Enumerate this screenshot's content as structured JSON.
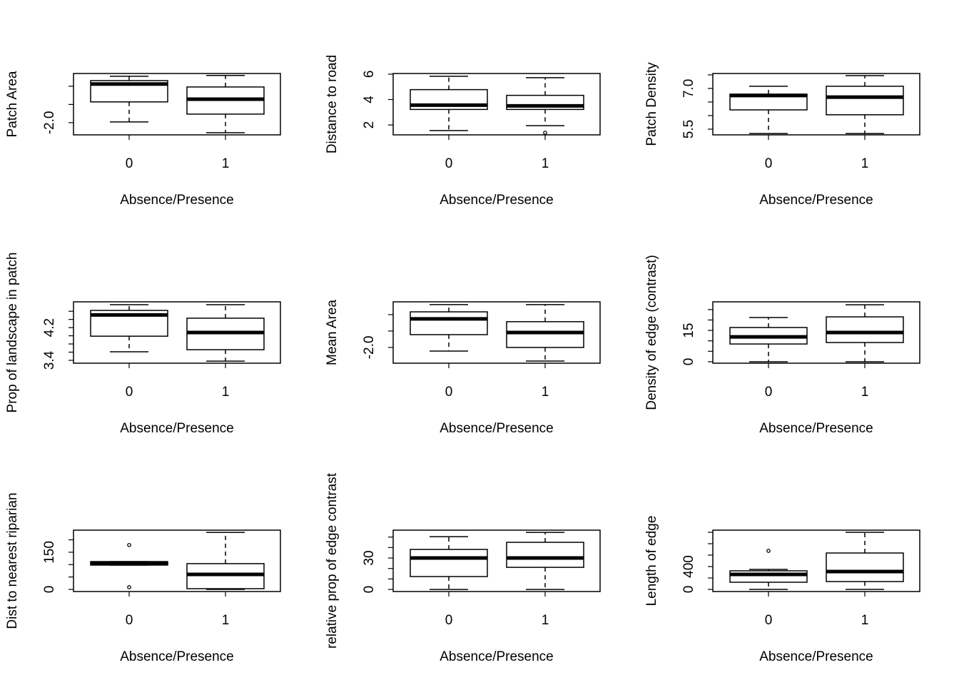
{
  "chart_data": [
    {
      "type": "box",
      "ylabel": "Patch Area",
      "xlabel": "Absence/Presence",
      "categories": [
        "0",
        "1"
      ],
      "boxes": [
        {
          "min": -1.96,
          "q1": -0.86,
          "median": 0.12,
          "q3": 0.31,
          "max": 0.55,
          "outliers": []
        },
        {
          "min": -2.55,
          "q1": -1.53,
          "median": -0.71,
          "q3": -0.04,
          "max": 0.59,
          "outliers": []
        }
      ],
      "ylim": [
        -2.67,
        0.7
      ],
      "yticks": [
        {
          "value": -2,
          "label": "-2.0"
        },
        {
          "value": -1,
          "label": null
        },
        {
          "value": 0,
          "label": null
        }
      ]
    },
    {
      "type": "box",
      "ylabel": "Distance to road",
      "xlabel": "Absence/Presence",
      "categories": [
        "0",
        "1"
      ],
      "boxes": [
        {
          "min": 1.56,
          "q1": 3.22,
          "median": 3.56,
          "q3": 4.78,
          "max": 5.83,
          "outliers": []
        },
        {
          "min": 1.94,
          "q1": 3.22,
          "median": 3.5,
          "q3": 4.33,
          "max": 5.72,
          "outliers": [
            1.39
          ]
        }
      ],
      "ylim": [
        1.22,
        6.05
      ],
      "yticks": [
        2,
        4,
        6
      ]
    },
    {
      "type": "box",
      "ylabel": "Patch Density",
      "xlabel": "Absence/Presence",
      "categories": [
        "0",
        "1"
      ],
      "boxes": [
        {
          "min": 5.34,
          "q1": 6.21,
          "median": 6.74,
          "q3": 6.79,
          "max": 7.08,
          "outliers": []
        },
        {
          "min": 5.34,
          "q1": 6.03,
          "median": 6.68,
          "q3": 7.08,
          "max": 7.47,
          "outliers": []
        }
      ],
      "ylim": [
        5.29,
        7.55
      ],
      "yticks": [
        5.5,
        {
          "value": 6,
          "label": null
        },
        {
          "value": 6.5,
          "label": null
        },
        {
          "value": 7,
          "label": "7.0"
        },
        {
          "value": 7.5,
          "label": null
        }
      ]
    },
    {
      "type": "box",
      "ylabel": "Prop of landscape in patch",
      "xlabel": "Absence/Presence",
      "categories": [
        "0",
        "1"
      ],
      "boxes": [
        {
          "min": 3.61,
          "q1": 3.99,
          "median": 4.51,
          "q3": 4.62,
          "max": 4.76,
          "outliers": []
        },
        {
          "min": 3.38,
          "q1": 3.66,
          "median": 4.08,
          "q3": 4.43,
          "max": 4.76,
          "outliers": []
        }
      ],
      "ylim": [
        3.33,
        4.83
      ],
      "yticks": [
        3.4,
        {
          "value": 3.6,
          "label": null
        },
        {
          "value": 3.8,
          "label": null
        },
        {
          "value": 4.0,
          "label": null
        },
        4.2,
        {
          "value": 4.4,
          "label": null
        },
        {
          "value": 4.6,
          "label": null
        }
      ]
    },
    {
      "type": "box",
      "ylabel": "Mean Area",
      "xlabel": "Absence/Presence",
      "categories": [
        "0",
        "1"
      ],
      "boxes": [
        {
          "min": -2.22,
          "q1": -1.22,
          "median": -0.26,
          "q3": 0.17,
          "max": 0.61,
          "outliers": []
        },
        {
          "min": -2.83,
          "q1": -2.0,
          "median": -1.09,
          "q3": -0.43,
          "max": 0.61,
          "outliers": []
        }
      ],
      "ylim": [
        -2.96,
        0.78
      ],
      "yticks": [
        {
          "value": -2,
          "label": "-2.0"
        },
        {
          "value": -1,
          "label": null
        },
        {
          "value": 0,
          "label": null
        }
      ]
    },
    {
      "type": "box",
      "ylabel": "Density of edge (contrast)",
      "xlabel": "Absence/Presence",
      "categories": [
        "0",
        "1"
      ],
      "boxes": [
        {
          "min": 0,
          "q1": 8.5,
          "median": 11.9,
          "q3": 16.4,
          "max": 21.2,
          "outliers": []
        },
        {
          "min": 0,
          "q1": 9.2,
          "median": 14.0,
          "q3": 21.5,
          "max": 27.3,
          "outliers": []
        }
      ],
      "ylim": [
        -0.7,
        28.7
      ],
      "yticks": [
        0,
        {
          "value": 5,
          "label": null
        },
        {
          "value": 10,
          "label": null
        },
        15,
        {
          "value": 20,
          "label": null
        },
        {
          "value": 25,
          "label": null
        }
      ]
    },
    {
      "type": "box",
      "ylabel": "Dist to nearest riparian",
      "xlabel": "Absence/Presence",
      "categories": [
        "0",
        "1"
      ],
      "boxes": [
        {
          "min": 98,
          "q1": 98,
          "median": 107,
          "q3": 112,
          "max": 112,
          "outliers": [
            179,
            8.6
          ]
        },
        {
          "min": 0,
          "q1": 2.9,
          "median": 60.5,
          "q3": 104,
          "max": 230,
          "outliers": []
        }
      ],
      "ylim": [
        -8.6,
        239
      ],
      "yticks": [
        0,
        {
          "value": 50,
          "label": null
        },
        {
          "value": 100,
          "label": null
        },
        150,
        {
          "value": 200,
          "label": null
        }
      ]
    },
    {
      "type": "box",
      "ylabel": "relative prop of edge contrast",
      "xlabel": "Absence/Presence",
      "categories": [
        "0",
        "1"
      ],
      "boxes": [
        {
          "min": 0,
          "q1": 12.3,
          "median": 30,
          "q3": 38.2,
          "max": 50.4,
          "outliers": []
        },
        {
          "min": 0,
          "q1": 21.1,
          "median": 30,
          "q3": 45,
          "max": 54.5,
          "outliers": []
        }
      ],
      "ylim": [
        -2,
        56.6
      ],
      "yticks": [
        0,
        {
          "value": 10,
          "label": null
        },
        {
          "value": 20,
          "label": null
        },
        30,
        {
          "value": 40,
          "label": null
        },
        {
          "value": 50,
          "label": null
        }
      ]
    },
    {
      "type": "box",
      "ylabel": "Length of edge",
      "xlabel": "Absence/Presence",
      "categories": [
        "0",
        "1"
      ],
      "boxes": [
        {
          "min": 0,
          "q1": 125,
          "median": 262,
          "q3": 325,
          "max": 350,
          "outliers": [
            675
          ]
        },
        {
          "min": 0,
          "q1": 137,
          "median": 312,
          "q3": 637,
          "max": 1000,
          "outliers": []
        }
      ],
      "ylim": [
        -37.5,
        1037
      ],
      "yticks": [
        0,
        {
          "value": 200,
          "label": null
        },
        400,
        {
          "value": 600,
          "label": null
        },
        {
          "value": 800,
          "label": null
        },
        {
          "value": 1000,
          "label": null
        }
      ]
    }
  ]
}
